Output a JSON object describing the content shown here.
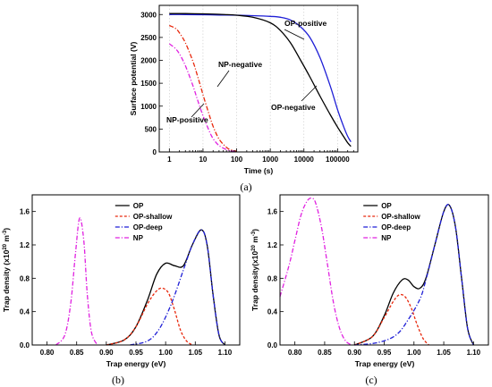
{
  "chart_data": [
    {
      "id": "a",
      "type": "line",
      "caption": "(a)",
      "xlabel": "Time (s)",
      "ylabel": "Surface potential (V)",
      "xscale": "log",
      "xlim": [
        0.5,
        400000
      ],
      "ylim": [
        0,
        3200
      ],
      "xticks": [
        1,
        10,
        100,
        1000,
        10000,
        100000
      ],
      "xtick_labels": [
        "1",
        "10",
        "100",
        "1000",
        "10000",
        "100000"
      ],
      "yticks": [
        0,
        500,
        1000,
        1500,
        2000,
        2500,
        3000
      ],
      "ytick_labels": [
        "0",
        "500",
        "1000",
        "1500",
        "2000",
        "2500",
        "3000"
      ],
      "grid": "vertical-dotted",
      "series": [
        {
          "name": "OP-positive",
          "color": "#1f1fd6",
          "style": "solid",
          "x": [
            1,
            3,
            10,
            30,
            100,
            300,
            1000,
            2000,
            4000,
            8000,
            15000,
            30000,
            60000,
            100000,
            150000,
            200000,
            250000
          ],
          "y": [
            3000,
            3000,
            2995,
            2990,
            2985,
            2975,
            2960,
            2940,
            2880,
            2730,
            2500,
            2060,
            1450,
            920,
            560,
            340,
            220
          ]
        },
        {
          "name": "OP-negative",
          "color": "#000000",
          "style": "solid",
          "x": [
            1,
            3,
            10,
            30,
            100,
            300,
            1000,
            2000,
            4000,
            8000,
            15000,
            30000,
            60000,
            100000,
            150000,
            200000,
            250000
          ],
          "y": [
            3020,
            3020,
            3015,
            3005,
            2985,
            2940,
            2820,
            2650,
            2380,
            2000,
            1640,
            1220,
            820,
            540,
            340,
            200,
            120
          ]
        },
        {
          "name": "NP-negative",
          "color": "#e8280c",
          "style": "dashdot",
          "x": [
            1,
            1.5,
            2,
            3,
            5,
            7,
            10,
            15,
            20,
            30,
            50,
            70,
            100
          ],
          "y": [
            2760,
            2700,
            2600,
            2380,
            1980,
            1640,
            1250,
            830,
            560,
            280,
            100,
            40,
            15
          ]
        },
        {
          "name": "NP-positive",
          "color": "#e020e0",
          "style": "dashdot",
          "x": [
            1,
            1.5,
            2,
            3,
            5,
            7,
            10,
            15,
            20,
            30,
            50,
            70,
            100
          ],
          "y": [
            2360,
            2260,
            2140,
            1880,
            1450,
            1120,
            790,
            470,
            290,
            140,
            50,
            20,
            8
          ]
        }
      ],
      "annotations": [
        {
          "text": "OP-positive",
          "target": "OP-positive"
        },
        {
          "text": "NP-negative",
          "target": "NP-negative"
        },
        {
          "text": "NP-positive",
          "target": "NP-positive"
        },
        {
          "text": "OP-negative",
          "target": "OP-negative"
        }
      ]
    },
    {
      "id": "b",
      "type": "line",
      "caption": "(b)",
      "xlabel": "Trap energy (eV)",
      "ylabel": "Trap density (x10",
      "ylabel_exp": "20",
      "ylabel_mid": " m",
      "ylabel_exp2": "-3",
      "ylabel_end": ")",
      "xlim": [
        0.775,
        1.125
      ],
      "ylim": [
        0,
        1.8
      ],
      "xticks": [
        0.8,
        0.85,
        0.9,
        0.95,
        1.0,
        1.05,
        1.1
      ],
      "xtick_labels": [
        "0.80",
        "0.85",
        "0.90",
        "0.95",
        "1.00",
        "1.05",
        "1.10"
      ],
      "yticks": [
        0.0,
        0.4,
        0.8,
        1.2,
        1.6
      ],
      "ytick_labels": [
        "0.0",
        "0.4",
        "0.8",
        "1.2",
        "1.6"
      ],
      "legend": "top-left",
      "series": [
        {
          "name": "OP",
          "color": "#000000",
          "style": "solid",
          "x": [
            0.9,
            0.93,
            0.95,
            0.97,
            0.985,
            1.0,
            1.015,
            1.03,
            1.045,
            1.06,
            1.07,
            1.08,
            1.09,
            1.1
          ],
          "y": [
            0.0,
            0.06,
            0.22,
            0.55,
            0.85,
            0.98,
            0.95,
            0.95,
            1.2,
            1.38,
            1.2,
            0.6,
            0.12,
            0.0
          ]
        },
        {
          "name": "OP-shallow",
          "color": "#e8280c",
          "style": "dashed",
          "x": [
            0.9,
            0.93,
            0.95,
            0.97,
            0.985,
            0.995,
            1.005,
            1.015,
            1.025,
            1.035,
            1.045
          ],
          "y": [
            0.0,
            0.06,
            0.22,
            0.5,
            0.65,
            0.68,
            0.62,
            0.42,
            0.18,
            0.05,
            0.0
          ]
        },
        {
          "name": "OP-deep",
          "color": "#1f1fd6",
          "style": "dashdot",
          "x": [
            0.94,
            0.97,
            0.99,
            1.01,
            1.03,
            1.045,
            1.06,
            1.07,
            1.08,
            1.09,
            1.1
          ],
          "y": [
            0.0,
            0.05,
            0.2,
            0.5,
            0.9,
            1.2,
            1.38,
            1.2,
            0.6,
            0.12,
            0.0
          ]
        },
        {
          "name": "NP",
          "color": "#e020e0",
          "style": "dashdot",
          "x": [
            0.815,
            0.83,
            0.84,
            0.848,
            0.855,
            0.862,
            0.868,
            0.875,
            0.885
          ],
          "y": [
            0.0,
            0.12,
            0.5,
            1.1,
            1.52,
            1.25,
            0.6,
            0.15,
            0.0
          ]
        }
      ]
    },
    {
      "id": "c",
      "type": "line",
      "caption": "(c)",
      "xlabel": "Trap energy (eV)",
      "ylabel": "Trap density(x10",
      "ylabel_exp": "20",
      "ylabel_mid": " m",
      "ylabel_exp2": "-3",
      "ylabel_end": ")",
      "xlim": [
        0.775,
        1.125
      ],
      "ylim": [
        0,
        1.8
      ],
      "xticks": [
        0.8,
        0.85,
        0.9,
        0.95,
        1.0,
        1.05,
        1.1
      ],
      "xtick_labels": [
        "0.80",
        "0.85",
        "0.90",
        "0.95",
        "1.00",
        "1.05",
        "1.10"
      ],
      "yticks": [
        0.0,
        0.4,
        0.8,
        1.2,
        1.6
      ],
      "ytick_labels": [
        "0.0",
        "0.4",
        "0.8",
        "1.2",
        "1.6"
      ],
      "legend": "top-left",
      "series": [
        {
          "name": "OP",
          "color": "#000000",
          "style": "solid",
          "x": [
            0.9,
            0.93,
            0.95,
            0.965,
            0.98,
            0.99,
            1.0,
            1.01,
            1.02,
            1.035,
            1.05,
            1.06,
            1.07,
            1.08,
            1.09,
            1.1
          ],
          "y": [
            0.0,
            0.1,
            0.35,
            0.62,
            0.78,
            0.78,
            0.7,
            0.68,
            0.8,
            1.2,
            1.6,
            1.67,
            1.4,
            0.8,
            0.2,
            0.0
          ]
        },
        {
          "name": "OP-shallow",
          "color": "#e8280c",
          "style": "dashed",
          "x": [
            0.9,
            0.93,
            0.95,
            0.965,
            0.975,
            0.985,
            0.995,
            1.005,
            1.015,
            1.025
          ],
          "y": [
            0.0,
            0.1,
            0.33,
            0.52,
            0.6,
            0.58,
            0.45,
            0.25,
            0.08,
            0.0
          ]
        },
        {
          "name": "OP-deep",
          "color": "#1f1fd6",
          "style": "dashdot",
          "x": [
            0.9,
            0.94,
            0.97,
            0.99,
            1.01,
            1.02,
            1.035,
            1.05,
            1.06,
            1.07,
            1.08,
            1.09,
            1.1
          ],
          "y": [
            0.0,
            0.03,
            0.12,
            0.3,
            0.55,
            0.78,
            1.2,
            1.6,
            1.67,
            1.4,
            0.8,
            0.2,
            0.0
          ]
        },
        {
          "name": "NP",
          "color": "#e020e0",
          "style": "dashdot",
          "x": [
            0.775,
            0.79,
            0.8,
            0.81,
            0.82,
            0.828,
            0.835,
            0.845,
            0.855,
            0.865,
            0.875,
            0.885,
            0.895
          ],
          "y": [
            0.58,
            0.95,
            1.25,
            1.55,
            1.72,
            1.76,
            1.7,
            1.4,
            0.95,
            0.5,
            0.2,
            0.05,
            0.0
          ]
        }
      ]
    }
  ]
}
